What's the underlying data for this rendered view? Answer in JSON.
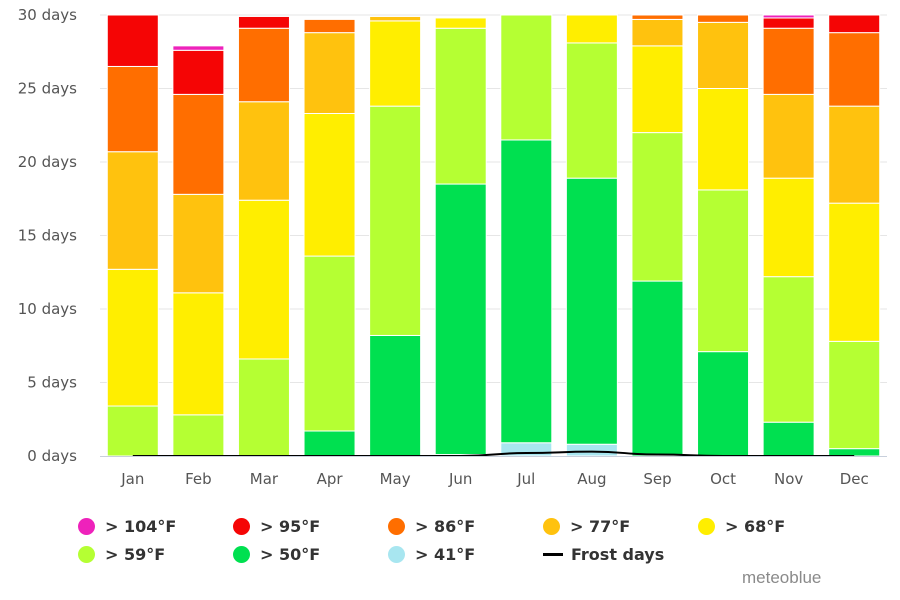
{
  "chart_data": {
    "type": "bar",
    "stacked": true,
    "categories": [
      "Jan",
      "Feb",
      "Mar",
      "Apr",
      "May",
      "Jun",
      "Jul",
      "Aug",
      "Sep",
      "Oct",
      "Nov",
      "Dec"
    ],
    "series": [
      {
        "name": "> 41°F",
        "color": "#a8e6f0",
        "values": [
          0,
          0,
          0,
          0,
          0,
          0.1,
          0.9,
          0.8,
          0,
          0,
          0,
          0
        ]
      },
      {
        "name": "> 50°F",
        "color": "#00e050",
        "values": [
          0,
          0,
          0,
          1.7,
          8.2,
          18.4,
          20.6,
          18.1,
          11.9,
          7.1,
          2.3,
          0.5
        ]
      },
      {
        "name": "> 59°F",
        "color": "#b5ff33",
        "values": [
          3.4,
          2.8,
          6.6,
          11.9,
          15.6,
          10.6,
          8.5,
          9.2,
          10.1,
          11.0,
          9.9,
          7.3
        ]
      },
      {
        "name": "> 68°F",
        "color": "#ffee00",
        "values": [
          9.3,
          8.3,
          10.8,
          9.7,
          5.8,
          0.7,
          0,
          1.9,
          5.9,
          6.9,
          6.7,
          9.4
        ]
      },
      {
        "name": "> 77°F",
        "color": "#ffc20e",
        "values": [
          8.0,
          6.7,
          6.7,
          5.5,
          0.3,
          0,
          0,
          0,
          1.8,
          4.5,
          5.7,
          6.6
        ]
      },
      {
        "name": "> 86°F",
        "color": "#ff6e00",
        "values": [
          5.8,
          6.8,
          5.0,
          0.9,
          0,
          0,
          0,
          0,
          0.3,
          0.5,
          4.5,
          5.0
        ]
      },
      {
        "name": "> 95°F",
        "color": "#f50505",
        "values": [
          3.5,
          3.0,
          0.8,
          0,
          0,
          0,
          0,
          0,
          0,
          0,
          0.7,
          1.2
        ]
      },
      {
        "name": "> 104°F",
        "color": "#ee22bb",
        "values": [
          0,
          0.3,
          0,
          0,
          0,
          0,
          0,
          0,
          0,
          0,
          0.2,
          0
        ]
      }
    ],
    "frost_days": {
      "name": "Frost days",
      "color": "#000000",
      "values": [
        0,
        0,
        0,
        0,
        0,
        0,
        0.2,
        0.3,
        0.1,
        0,
        0,
        0
      ]
    },
    "y_ticks": [
      "0 days",
      "5 days",
      "10 days",
      "15 days",
      "20 days",
      "25 days",
      "30 days"
    ],
    "ylim": [
      0,
      30
    ],
    "grid": true,
    "legend_position": "bottom"
  },
  "credit": "meteoblue"
}
